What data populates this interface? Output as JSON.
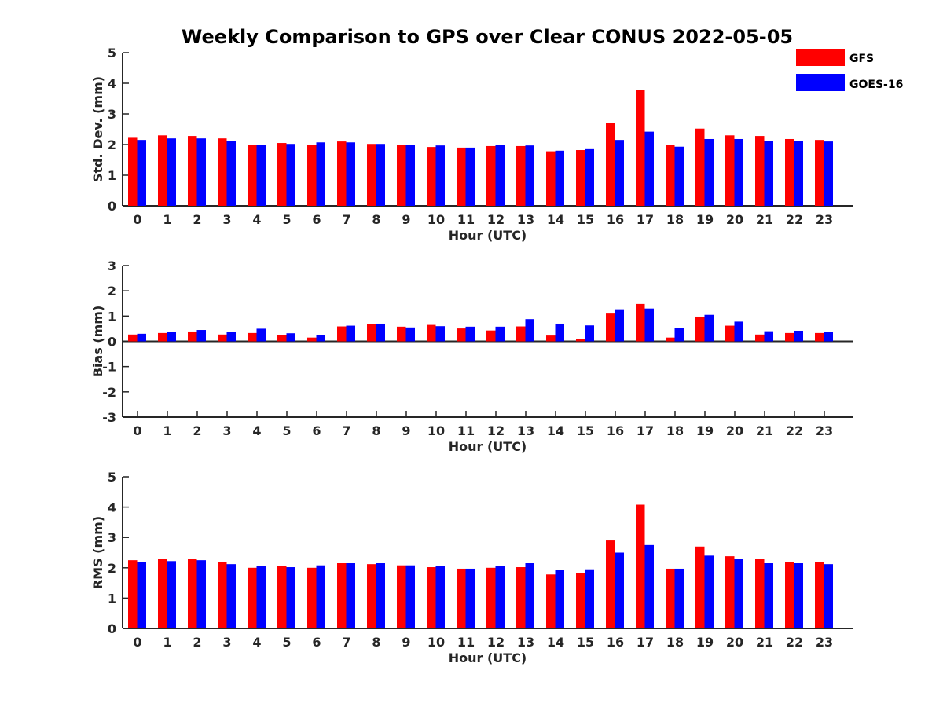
{
  "title": "Weekly Comparison to GPS over Clear CONUS 2022-05-05",
  "colors": {
    "GFS": "#ff0000",
    "GOES-16": "#0000ff"
  },
  "legend": {
    "labels": [
      "GFS",
      "GOES-16"
    ],
    "placement": "top-right"
  },
  "chart_data": [
    {
      "type": "bar",
      "ylabel": "Std. Dev. (mm)",
      "xlabel": "Hour (UTC)",
      "ylim": [
        0,
        5
      ],
      "yticks": [
        0,
        1,
        2,
        3,
        4,
        5
      ],
      "categories": [
        "0",
        "1",
        "2",
        "3",
        "4",
        "5",
        "6",
        "7",
        "8",
        "9",
        "10",
        "11",
        "12",
        "13",
        "14",
        "15",
        "16",
        "17",
        "18",
        "19",
        "20",
        "21",
        "22",
        "23"
      ],
      "series": [
        {
          "name": "GFS",
          "values": [
            2.22,
            2.3,
            2.28,
            2.2,
            2.0,
            2.05,
            2.0,
            2.1,
            2.02,
            2.0,
            1.92,
            1.9,
            1.95,
            1.95,
            1.78,
            1.82,
            2.7,
            3.78,
            1.98,
            2.52,
            2.3,
            2.28,
            2.18,
            2.15
          ]
        },
        {
          "name": "GOES-16",
          "values": [
            2.15,
            2.2,
            2.2,
            2.12,
            2.0,
            2.02,
            2.07,
            2.07,
            2.02,
            2.0,
            1.97,
            1.9,
            2.0,
            1.97,
            1.8,
            1.85,
            2.15,
            2.42,
            1.93,
            2.18,
            2.18,
            2.12,
            2.12,
            2.1
          ]
        }
      ]
    },
    {
      "type": "bar",
      "ylabel": "Bias (mm)",
      "xlabel": "Hour (UTC)",
      "ylim": [
        -3,
        3
      ],
      "yticks": [
        -3,
        -2,
        -1,
        0,
        1,
        2,
        3
      ],
      "categories": [
        "0",
        "1",
        "2",
        "3",
        "4",
        "5",
        "6",
        "7",
        "8",
        "9",
        "10",
        "11",
        "12",
        "13",
        "14",
        "15",
        "16",
        "17",
        "18",
        "19",
        "20",
        "21",
        "22",
        "23"
      ],
      "series": [
        {
          "name": "GFS",
          "values": [
            0.27,
            0.33,
            0.39,
            0.27,
            0.33,
            0.24,
            0.15,
            0.59,
            0.67,
            0.58,
            0.65,
            0.51,
            0.43,
            0.59,
            0.23,
            0.08,
            1.1,
            1.48,
            0.15,
            0.98,
            0.62,
            0.27,
            0.33,
            0.33
          ]
        },
        {
          "name": "GOES-16",
          "values": [
            0.3,
            0.37,
            0.45,
            0.36,
            0.5,
            0.32,
            0.24,
            0.62,
            0.7,
            0.55,
            0.6,
            0.58,
            0.58,
            0.88,
            0.7,
            0.63,
            1.27,
            1.3,
            0.52,
            1.05,
            0.78,
            0.4,
            0.42,
            0.36
          ]
        }
      ]
    },
    {
      "type": "bar",
      "ylabel": "RMS (mm)",
      "xlabel": "Hour (UTC)",
      "ylim": [
        0,
        5
      ],
      "yticks": [
        0,
        1,
        2,
        3,
        4,
        5
      ],
      "categories": [
        "0",
        "1",
        "2",
        "3",
        "4",
        "5",
        "6",
        "7",
        "8",
        "9",
        "10",
        "11",
        "12",
        "13",
        "14",
        "15",
        "16",
        "17",
        "18",
        "19",
        "20",
        "21",
        "22",
        "23"
      ],
      "series": [
        {
          "name": "GFS",
          "values": [
            2.25,
            2.3,
            2.3,
            2.2,
            2.0,
            2.05,
            2.0,
            2.15,
            2.12,
            2.08,
            2.02,
            1.97,
            2.0,
            2.02,
            1.78,
            1.82,
            2.9,
            4.08,
            1.97,
            2.7,
            2.38,
            2.28,
            2.2,
            2.18
          ]
        },
        {
          "name": "GOES-16",
          "values": [
            2.18,
            2.22,
            2.25,
            2.12,
            2.05,
            2.02,
            2.08,
            2.15,
            2.15,
            2.08,
            2.05,
            1.97,
            2.05,
            2.15,
            1.92,
            1.95,
            2.5,
            2.75,
            1.97,
            2.4,
            2.28,
            2.15,
            2.15,
            2.12
          ]
        }
      ]
    }
  ]
}
